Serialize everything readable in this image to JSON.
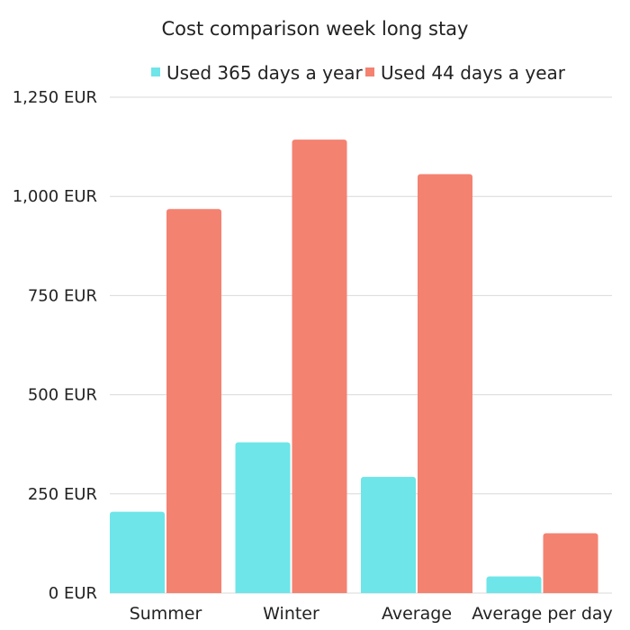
{
  "chart_data": {
    "type": "bar",
    "title": "Cost comparison week long stay",
    "categories": [
      "Summer",
      "Winter",
      "Average",
      "Average per day"
    ],
    "series": [
      {
        "name": "Used 365 days a year",
        "color": "#6EE5E8",
        "values": [
          205,
          380,
          293,
          42
        ]
      },
      {
        "name": "Used 44 days a year",
        "color": "#F48271",
        "values": [
          968,
          1143,
          1056,
          151
        ]
      }
    ],
    "y_ticks": [
      {
        "value": 0,
        "label": "0 EUR"
      },
      {
        "value": 250,
        "label": "250 EUR"
      },
      {
        "value": 500,
        "label": "500 EUR"
      },
      {
        "value": 750,
        "label": "750 EUR"
      },
      {
        "value": 1000,
        "label": "1,000 EUR"
      },
      {
        "value": 1250,
        "label": "1,250 EUR"
      }
    ],
    "ylim": [
      0,
      1250
    ],
    "xlabel": "",
    "ylabel": "",
    "grid": true,
    "legend_position": "top-center"
  }
}
